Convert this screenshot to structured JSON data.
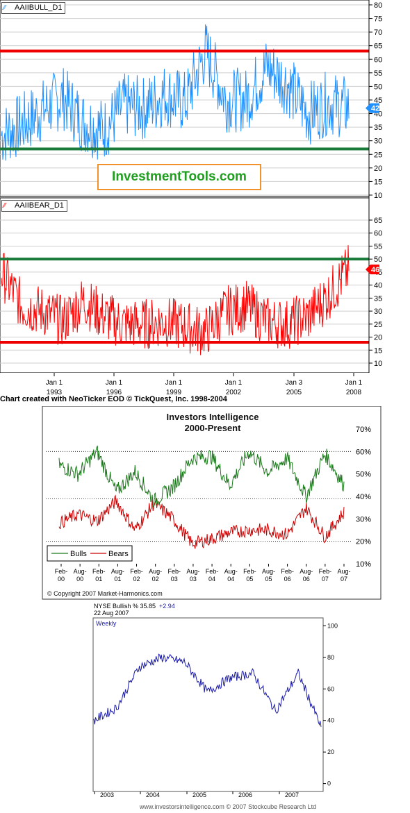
{
  "top": {
    "credit": "Chart created with NeoTicker EOD © TickQuest, Inc. 1998-2004",
    "watermark": "InvestmentTools.com",
    "x_ticks": [
      {
        "month": "Jan 1",
        "year": "1993"
      },
      {
        "month": "Jan 1",
        "year": "1996"
      },
      {
        "month": "Jan 1",
        "year": "1999"
      },
      {
        "month": "Jan 1",
        "year": "2002"
      },
      {
        "month": "Jan 3",
        "year": "2005"
      },
      {
        "month": "Jan 1",
        "year": "2008"
      }
    ],
    "bull": {
      "label": "AAIIBULL_D1",
      "line_color": "#1e90ff",
      "last_value": "42",
      "ylim": [
        10,
        80
      ],
      "ticks": [
        "80",
        "75",
        "70",
        "65",
        "60",
        "55",
        "50",
        "45",
        "40",
        "35",
        "30",
        "25",
        "20",
        "15",
        "10"
      ],
      "red_level": 63,
      "green_level": 27
    },
    "bear": {
      "label": "AAIIBEAR_D1",
      "line_color": "#ff0000",
      "last_value": "46",
      "ylim": [
        10,
        65
      ],
      "ticks": [
        "65",
        "60",
        "55",
        "50",
        "45",
        "40",
        "35",
        "30",
        "25",
        "20",
        "15",
        "10"
      ],
      "green_level": 50,
      "red_level": 18
    }
  },
  "middle": {
    "title": "Investors Intelligence",
    "subtitle": "2000-Present",
    "y_ticks": [
      "70%",
      "60%",
      "50%",
      "40%",
      "30%",
      "20%",
      "10%"
    ],
    "x_ticks": [
      [
        "Feb-",
        "00"
      ],
      [
        "Aug-",
        "00"
      ],
      [
        "Feb-",
        "01"
      ],
      [
        "Aug-",
        "01"
      ],
      [
        "Feb-",
        "02"
      ],
      [
        "Aug-",
        "02"
      ],
      [
        "Feb-",
        "03"
      ],
      [
        "Aug-",
        "03"
      ],
      [
        "Feb-",
        "04"
      ],
      [
        "Aug-",
        "04"
      ],
      [
        "Feb-",
        "05"
      ],
      [
        "Aug-",
        "05"
      ],
      [
        "Feb-",
        "06"
      ],
      [
        "Aug-",
        "06"
      ],
      [
        "Feb-",
        "07"
      ],
      [
        "Aug-",
        "07"
      ]
    ],
    "legend": [
      {
        "name": "Bulls",
        "color": "#1a7a1a"
      },
      {
        "name": "Bears",
        "color": "#cc0000"
      }
    ],
    "copyright": "© Copyright 2007 Market-Harmonics.com"
  },
  "bottom": {
    "header_line1": "NYSE Bullish % 35.85",
    "header_change": "+2.94",
    "header_line2": "22 Aug 2007",
    "interval": "Weekly",
    "y_ticks": [
      "100",
      "80",
      "60",
      "40",
      "20",
      "0"
    ],
    "x_ticks": [
      "2003",
      "2004",
      "2005",
      "2006",
      "2007"
    ],
    "footer": "www.investorsintelligence.com  © 2007 Stockcube Research Ltd",
    "line_color": "#1a1aa8"
  },
  "chart_data": [
    {
      "type": "line",
      "title": "AAIIBULL_D1",
      "xlabel": "",
      "ylabel": "",
      "x": [
        "1990",
        "1991",
        "1992",
        "1993",
        "1994",
        "1995",
        "1996",
        "1997",
        "1998",
        "1999",
        "2000",
        "2001",
        "2002",
        "2003",
        "2004",
        "2005",
        "2006",
        "2007"
      ],
      "series": [
        {
          "name": "AAIIBULL_D1",
          "values": [
            32,
            36,
            41,
            46,
            37,
            34,
            43,
            42,
            47,
            44,
            63,
            45,
            45,
            57,
            51,
            40,
            44,
            42
          ]
        }
      ],
      "ylim": [
        10,
        80
      ],
      "reference_lines": [
        63,
        27
      ]
    },
    {
      "type": "line",
      "title": "AAIIBEAR_D1",
      "xlabel": "",
      "ylabel": "",
      "x": [
        "1990",
        "1991",
        "1992",
        "1993",
        "1994",
        "1995",
        "1996",
        "1997",
        "1998",
        "1999",
        "2000",
        "2001",
        "2002",
        "2003",
        "2004",
        "2005",
        "2006",
        "2007"
      ],
      "series": [
        {
          "name": "AAIIBEAR_D1",
          "values": [
            45,
            32,
            30,
            26,
            34,
            28,
            25,
            25,
            26,
            24,
            22,
            30,
            32,
            26,
            25,
            28,
            36,
            46
          ]
        }
      ],
      "ylim": [
        10,
        65
      ],
      "reference_lines": [
        50,
        18
      ]
    },
    {
      "type": "line",
      "title": "Investors Intelligence",
      "subtitle": "2000-Present",
      "xlabel": "",
      "ylabel": "",
      "x": [
        "Feb-00",
        "Aug-00",
        "Feb-01",
        "Aug-01",
        "Feb-02",
        "Aug-02",
        "Feb-03",
        "Aug-03",
        "Feb-04",
        "Aug-04",
        "Feb-05",
        "Aug-05",
        "Feb-06",
        "Aug-06",
        "Feb-07",
        "Aug-07"
      ],
      "series": [
        {
          "name": "Bulls",
          "values": [
            54,
            50,
            60,
            42,
            51,
            38,
            44,
            57,
            58,
            45,
            60,
            51,
            57,
            40,
            59,
            45
          ]
        },
        {
          "name": "Bears",
          "values": [
            28,
            32,
            29,
            38,
            25,
            37,
            30,
            19,
            21,
            24,
            25,
            25,
            23,
            35,
            22,
            33
          ]
        }
      ],
      "ylim": [
        10,
        70
      ],
      "reference_lines": [
        60,
        39,
        20
      ]
    },
    {
      "type": "line",
      "title": "NYSE Bullish %",
      "xlabel": "",
      "ylabel": "",
      "x": [
        "2002-09",
        "2003-03",
        "2003-09",
        "2004-03",
        "2004-09",
        "2005-03",
        "2005-09",
        "2006-03",
        "2006-09",
        "2007-03",
        "2007-08"
      ],
      "series": [
        {
          "name": "NYSE Bullish %",
          "values": [
            40,
            48,
            74,
            80,
            77,
            58,
            67,
            70,
            46,
            70,
            35.85
          ]
        }
      ],
      "ylim": [
        -5,
        105
      ]
    }
  ]
}
